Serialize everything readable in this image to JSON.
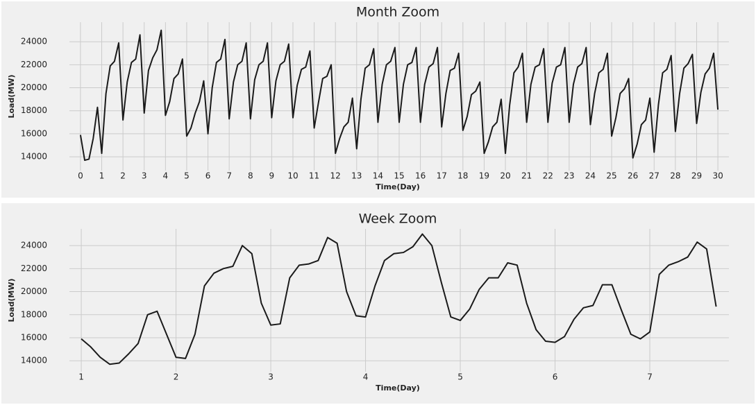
{
  "chart_data": [
    {
      "type": "line",
      "title": "Month Zoom",
      "xlabel": "Time(Day)",
      "ylabel": "Load(MW)",
      "color": "#1a1a1a",
      "grid": true,
      "xlim": [
        -0.52,
        30.52
      ],
      "ylim": [
        12800,
        25700
      ],
      "xticks": [
        0,
        1,
        2,
        3,
        4,
        5,
        6,
        7,
        8,
        9,
        10,
        11,
        12,
        13,
        14,
        15,
        16,
        17,
        18,
        19,
        20,
        21,
        22,
        23,
        24,
        25,
        26,
        27,
        28,
        29,
        30
      ],
      "yticks": [
        14000,
        16000,
        18000,
        20000,
        22000,
        24000
      ],
      "x": [
        0,
        0.2,
        0.4,
        0.6,
        0.8,
        1,
        1.2,
        1.4,
        1.6,
        1.8,
        2,
        2.2,
        2.4,
        2.6,
        2.8,
        3,
        3.2,
        3.4,
        3.6,
        3.8,
        4,
        4.2,
        4.4,
        4.6,
        4.8,
        5,
        5.2,
        5.4,
        5.6,
        5.8,
        6,
        6.2,
        6.4,
        6.6,
        6.8,
        7,
        7.2,
        7.4,
        7.6,
        7.8,
        8,
        8.2,
        8.4,
        8.6,
        8.8,
        9,
        9.2,
        9.4,
        9.6,
        9.8,
        10,
        10.2,
        10.4,
        10.6,
        10.8,
        11,
        11.2,
        11.4,
        11.6,
        11.8,
        12,
        12.2,
        12.4,
        12.6,
        12.8,
        13,
        13.2,
        13.4,
        13.6,
        13.8,
        14,
        14.2,
        14.4,
        14.6,
        14.8,
        15,
        15.2,
        15.4,
        15.6,
        15.8,
        16,
        16.2,
        16.4,
        16.6,
        16.8,
        17,
        17.2,
        17.4,
        17.6,
        17.8,
        18,
        18.2,
        18.4,
        18.6,
        18.8,
        19,
        19.2,
        19.4,
        19.6,
        19.8,
        20,
        20.2,
        20.4,
        20.6,
        20.8,
        21,
        21.2,
        21.4,
        21.6,
        21.8,
        22,
        22.2,
        22.4,
        22.6,
        22.8,
        23,
        23.2,
        23.4,
        23.6,
        23.8,
        24,
        24.2,
        24.4,
        24.6,
        24.8,
        25,
        25.2,
        25.4,
        25.6,
        25.8,
        26,
        26.2,
        26.4,
        26.6,
        26.8,
        27,
        27.2,
        27.4,
        27.6,
        27.8,
        28,
        28.2,
        28.4,
        28.6,
        28.8,
        29,
        29.2,
        29.4,
        29.6,
        29.8,
        30
      ],
      "values": [
        15900,
        13700,
        13800,
        15600,
        18300,
        14300,
        19500,
        21900,
        22300,
        23900,
        17200,
        20500,
        22200,
        22500,
        24600,
        17800,
        21500,
        22600,
        23300,
        25000,
        17600,
        18800,
        20800,
        21200,
        22500,
        15800,
        16500,
        17800,
        18800,
        20600,
        16000,
        20000,
        22200,
        22500,
        24200,
        17300,
        20500,
        22000,
        22300,
        23900,
        17300,
        20700,
        22000,
        22300,
        23900,
        17400,
        20600,
        22000,
        22300,
        23800,
        17400,
        20200,
        21600,
        21800,
        23200,
        16500,
        18700,
        20800,
        21000,
        22000,
        14300,
        15600,
        16600,
        17000,
        19100,
        14700,
        19000,
        21700,
        22000,
        23400,
        17000,
        20300,
        22000,
        22300,
        23500,
        17000,
        20300,
        22000,
        22200,
        23500,
        17000,
        20300,
        21800,
        22100,
        23500,
        16600,
        19500,
        21500,
        21700,
        23000,
        16300,
        17500,
        19400,
        19700,
        20500,
        14300,
        15300,
        16600,
        17000,
        19000,
        14300,
        18500,
        21300,
        21800,
        23000,
        17000,
        20300,
        21800,
        22000,
        23400,
        17000,
        20400,
        21800,
        22000,
        23500,
        17000,
        20300,
        21800,
        22100,
        23500,
        16800,
        19500,
        21300,
        21600,
        23000,
        15800,
        17400,
        19500,
        19900,
        20800,
        13900,
        15100,
        16800,
        17200,
        19100,
        14400,
        18500,
        21300,
        21600,
        22800,
        16200,
        19500,
        21700,
        22100,
        22900,
        16900,
        19600,
        21200,
        21700,
        23000,
        18100
      ]
    },
    {
      "type": "line",
      "title": "Week Zoom",
      "xlabel": "Time(Day)",
      "ylabel": "Load(MW)",
      "color": "#1a1a1a",
      "grid": true,
      "xlim": [
        0.875,
        7.835
      ],
      "ylim": [
        13050,
        25450
      ],
      "xticks": [
        1,
        2,
        3,
        4,
        5,
        6,
        7
      ],
      "yticks": [
        14000,
        16000,
        18000,
        20000,
        22000,
        24000
      ],
      "x": [
        1,
        1.1,
        1.2,
        1.3,
        1.4,
        1.5,
        1.6,
        1.7,
        1.8,
        1.9,
        2,
        2.1,
        2.2,
        2.3,
        2.4,
        2.5,
        2.6,
        2.7,
        2.8,
        2.9,
        3,
        3.1,
        3.2,
        3.3,
        3.4,
        3.5,
        3.6,
        3.7,
        3.8,
        3.9,
        4,
        4.1,
        4.2,
        4.3,
        4.4,
        4.5,
        4.6,
        4.7,
        4.8,
        4.9,
        5,
        5.1,
        5.2,
        5.3,
        5.4,
        5.5,
        5.6,
        5.7,
        5.8,
        5.9,
        6,
        6.1,
        6.2,
        6.3,
        6.4,
        6.5,
        6.6,
        6.7,
        6.8,
        6.9,
        7,
        7.1,
        7.2,
        7.3,
        7.4,
        7.5,
        7.6,
        7.7
      ],
      "values": [
        15900,
        15200,
        14300,
        13700,
        13800,
        14600,
        15500,
        18000,
        18300,
        16300,
        14300,
        14200,
        16300,
        20500,
        21600,
        22000,
        22200,
        24000,
        23300,
        19000,
        17100,
        17200,
        21200,
        22300,
        22400,
        22700,
        24700,
        24200,
        20000,
        17900,
        17800,
        20500,
        22700,
        23300,
        23400,
        23900,
        25000,
        24000,
        20800,
        17800,
        17500,
        18500,
        20200,
        21200,
        21200,
        22500,
        22300,
        19000,
        16700,
        15700,
        15600,
        16100,
        17600,
        18600,
        18800,
        20600,
        20600,
        18400,
        16300,
        15900,
        16500,
        21500,
        22300,
        22600,
        23000,
        24300,
        23700,
        18700
      ]
    }
  ]
}
